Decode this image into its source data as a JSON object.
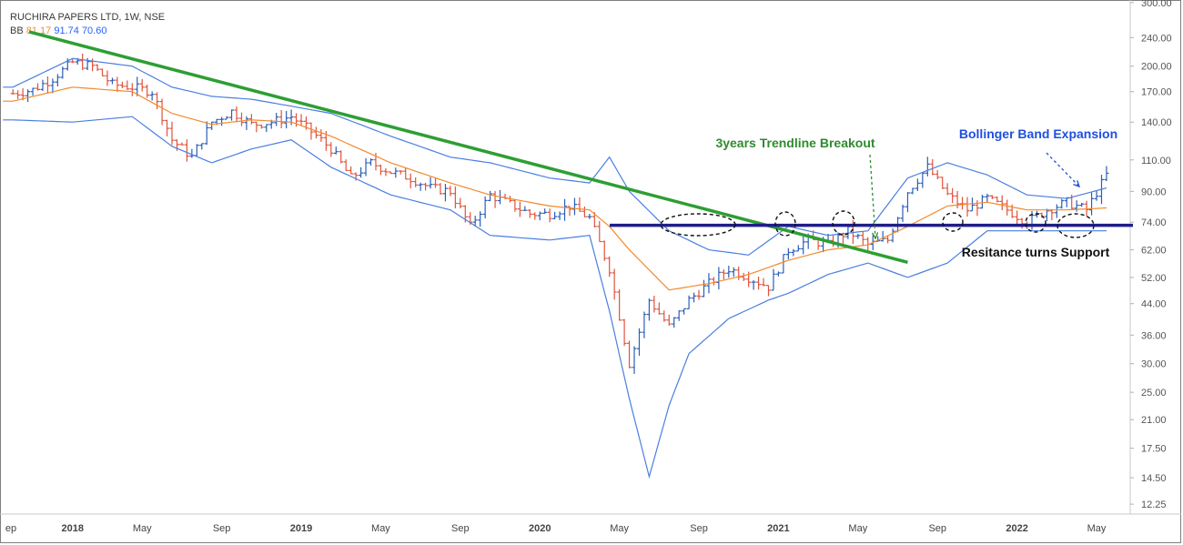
{
  "header": {
    "symbol": "RUCHIRA PAPERS LTD, 1W, NSE",
    "indicator": "BB",
    "bb_middle": "81.17",
    "bb_upper": "91.74",
    "bb_lower": "70.60"
  },
  "colors": {
    "candle_up": "#2a5fb8",
    "candle_down": "#e0533d",
    "bb_band": "#4a7fe0",
    "bb_basis": "#f28a2e",
    "trendline": "#2e9e33",
    "support_line": "#1f1e8a",
    "annotation_green": "#2e8b2e",
    "annotation_blue": "#1f4fe0"
  },
  "annotations": {
    "trendline_breakout": "3years Trendline Breakout",
    "bb_expansion": "Bollinger Band Expansion",
    "resistance_support": "Resitance turns Support"
  },
  "chart_data": {
    "type": "candlestick",
    "scale": "log",
    "ylim": [
      11.5,
      305
    ],
    "y_ticks": [
      "300.00",
      "240.00",
      "200.00",
      "170.00",
      "140.00",
      "110.00",
      "90.00",
      "74.00",
      "62.00",
      "52.00",
      "44.00",
      "36.00",
      "30.00",
      "25.00",
      "21.00",
      "17.50",
      "14.50",
      "12.25"
    ],
    "x_ticks": [
      "ep",
      "2018",
      "May",
      "Sep",
      "2019",
      "May",
      "Sep",
      "2020",
      "May",
      "Sep",
      "2021",
      "May",
      "Sep",
      "2022",
      "May"
    ],
    "x_range": [
      "2017-08",
      "2022-05"
    ],
    "support_level": 72.5,
    "trendline": {
      "from": {
        "date": "2017-11",
        "value": 235
      },
      "to": {
        "date": "2021-06",
        "value": 60
      }
    },
    "price_path": [
      [
        "2017-09",
        168
      ],
      [
        "2017-10",
        172
      ],
      [
        "2017-11",
        185
      ],
      [
        "2017-12",
        205
      ],
      [
        "2018-01",
        200
      ],
      [
        "2018-02",
        178
      ],
      [
        "2018-03",
        175
      ],
      [
        "2018-04",
        170
      ],
      [
        "2018-05",
        125
      ],
      [
        "2018-06",
        112
      ],
      [
        "2018-07",
        140
      ],
      [
        "2018-08",
        150
      ],
      [
        "2018-09",
        138
      ],
      [
        "2018-10",
        140
      ],
      [
        "2018-11",
        145
      ],
      [
        "2018-12",
        132
      ],
      [
        "2019-01",
        118
      ],
      [
        "2019-02",
        98
      ],
      [
        "2019-03",
        108
      ],
      [
        "2019-04",
        102
      ],
      [
        "2019-05",
        98
      ],
      [
        "2019-06",
        92
      ],
      [
        "2019-07",
        90
      ],
      [
        "2019-08",
        72
      ],
      [
        "2019-09",
        88
      ],
      [
        "2019-10",
        83
      ],
      [
        "2019-11",
        78
      ],
      [
        "2019-12",
        78
      ],
      [
        "2020-01",
        82
      ],
      [
        "2020-02",
        76
      ],
      [
        "2020-03",
        55
      ],
      [
        "2020-04",
        30
      ],
      [
        "2020-05",
        45
      ],
      [
        "2020-06",
        38
      ],
      [
        "2020-07",
        45
      ],
      [
        "2020-08",
        50
      ],
      [
        "2020-09",
        55
      ],
      [
        "2020-10",
        52
      ],
      [
        "2020-11",
        49
      ],
      [
        "2020-12",
        62
      ],
      [
        "2021-01",
        66
      ],
      [
        "2021-02",
        64
      ],
      [
        "2021-03",
        70
      ],
      [
        "2021-04",
        64
      ],
      [
        "2021-05",
        66
      ],
      [
        "2021-06",
        90
      ],
      [
        "2021-07",
        105
      ],
      [
        "2021-08",
        88
      ],
      [
        "2021-09",
        80
      ],
      [
        "2021-10",
        86
      ],
      [
        "2021-11",
        80
      ],
      [
        "2021-12",
        74
      ],
      [
        "2022-01",
        80
      ],
      [
        "2022-02",
        84
      ],
      [
        "2022-03",
        80
      ],
      [
        "2022-04",
        100
      ]
    ],
    "bb_upper_path": [
      [
        "2017-09",
        175
      ],
      [
        "2017-12",
        210
      ],
      [
        "2018-03",
        200
      ],
      [
        "2018-05",
        175
      ],
      [
        "2018-07",
        165
      ],
      [
        "2018-09",
        162
      ],
      [
        "2018-11",
        155
      ],
      [
        "2019-01",
        148
      ],
      [
        "2019-04",
        128
      ],
      [
        "2019-07",
        112
      ],
      [
        "2019-09",
        108
      ],
      [
        "2019-12",
        98
      ],
      [
        "2020-02",
        95
      ],
      [
        "2020-03",
        112
      ],
      [
        "2020-04",
        90
      ],
      [
        "2020-06",
        70
      ],
      [
        "2020-08",
        62
      ],
      [
        "2020-10",
        60
      ],
      [
        "2020-12",
        72
      ],
      [
        "2021-02",
        68
      ],
      [
        "2021-04",
        70
      ],
      [
        "2021-06",
        98
      ],
      [
        "2021-08",
        108
      ],
      [
        "2021-10",
        100
      ],
      [
        "2021-12",
        88
      ],
      [
        "2022-02",
        86
      ],
      [
        "2022-04",
        92
      ]
    ],
    "bb_basis_path": [
      [
        "2017-09",
        160
      ],
      [
        "2017-12",
        175
      ],
      [
        "2018-03",
        170
      ],
      [
        "2018-05",
        148
      ],
      [
        "2018-07",
        138
      ],
      [
        "2018-09",
        142
      ],
      [
        "2018-11",
        140
      ],
      [
        "2019-01",
        128
      ],
      [
        "2019-04",
        108
      ],
      [
        "2019-07",
        95
      ],
      [
        "2019-09",
        88
      ],
      [
        "2019-12",
        82
      ],
      [
        "2020-02",
        80
      ],
      [
        "2020-03",
        72
      ],
      [
        "2020-04",
        62
      ],
      [
        "2020-06",
        48
      ],
      [
        "2020-08",
        50
      ],
      [
        "2020-10",
        53
      ],
      [
        "2020-12",
        58
      ],
      [
        "2021-02",
        62
      ],
      [
        "2021-04",
        64
      ],
      [
        "2021-06",
        72
      ],
      [
        "2021-08",
        82
      ],
      [
        "2021-10",
        84
      ],
      [
        "2021-12",
        80
      ],
      [
        "2022-02",
        80
      ],
      [
        "2022-04",
        81
      ]
    ],
    "bb_lower_path": [
      [
        "2017-09",
        142
      ],
      [
        "2017-12",
        140
      ],
      [
        "2018-03",
        145
      ],
      [
        "2018-05",
        120
      ],
      [
        "2018-07",
        108
      ],
      [
        "2018-09",
        118
      ],
      [
        "2018-11",
        125
      ],
      [
        "2019-01",
        105
      ],
      [
        "2019-04",
        88
      ],
      [
        "2019-07",
        80
      ],
      [
        "2019-09",
        68
      ],
      [
        "2019-12",
        66
      ],
      [
        "2020-02",
        68
      ],
      [
        "2020-03",
        42
      ],
      [
        "2020-04",
        24
      ],
      [
        "2020-05",
        14.6
      ],
      [
        "2020-06",
        23
      ],
      [
        "2020-07",
        32
      ],
      [
        "2020-09",
        40
      ],
      [
        "2020-11",
        45
      ],
      [
        "2020-12",
        47
      ],
      [
        "2021-02",
        53
      ],
      [
        "2021-04",
        57
      ],
      [
        "2021-06",
        52
      ],
      [
        "2021-08",
        57
      ],
      [
        "2021-10",
        70
      ],
      [
        "2021-12",
        70
      ],
      [
        "2022-02",
        70
      ],
      [
        "2022-04",
        70
      ]
    ]
  }
}
